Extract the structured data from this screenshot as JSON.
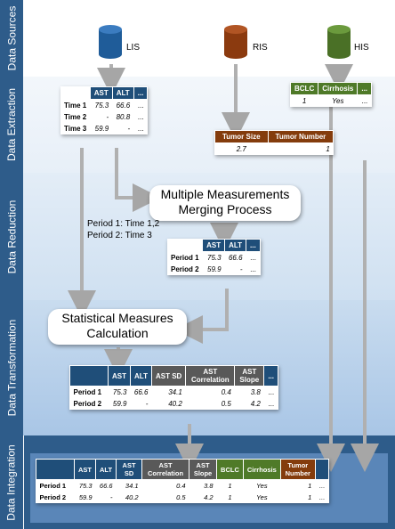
{
  "bands": [
    {
      "label": "Data Sources"
    },
    {
      "label": "Data Extraction"
    },
    {
      "label": "Data Reduction"
    },
    {
      "label": "Data Transformation"
    },
    {
      "label": "Data Integration"
    }
  ],
  "sources": {
    "lis": "LIS",
    "ris": "RIS",
    "his": "HIS"
  },
  "lis_table": {
    "headers": [
      "",
      "AST",
      "ALT",
      "..."
    ],
    "rows": [
      {
        "label": "Time 1",
        "cells": [
          "75.3",
          "66.6",
          "..."
        ]
      },
      {
        "label": "Time 2",
        "cells": [
          "-",
          "80.8",
          "..."
        ]
      },
      {
        "label": "Time 3",
        "cells": [
          "59.9",
          "-",
          "..."
        ]
      }
    ]
  },
  "his_table": {
    "headers": [
      "BCLC",
      "Cirrhosis",
      "..."
    ],
    "row": [
      "1",
      "Yes",
      "..."
    ]
  },
  "ris_table": {
    "headers": [
      "Tumor Size",
      "Tumor Number"
    ],
    "row": [
      "2.7",
      "1"
    ]
  },
  "merge_process": {
    "line1": "Multiple Measurements",
    "line2": "Merging Process"
  },
  "periods_note": {
    "line1": "Period 1: Time 1,2",
    "line2": "Period 2: Time 3"
  },
  "reduced_table": {
    "headers": [
      "",
      "AST",
      "ALT",
      "..."
    ],
    "rows": [
      {
        "label": "Period 1",
        "cells": [
          "75.3",
          "66.6",
          "..."
        ]
      },
      {
        "label": "Period 2",
        "cells": [
          "59.9",
          "-",
          "..."
        ]
      }
    ]
  },
  "stat_process": {
    "line1": "Statistical Measures",
    "line2": "Calculation"
  },
  "transform_table": {
    "headers": [
      "",
      "AST",
      "ALT",
      "AST SD",
      "AST Correlation",
      "AST Slope",
      "..."
    ],
    "rows": [
      {
        "label": "Period 1",
        "cells": [
          "75.3",
          "66.6",
          "34.1",
          "0.4",
          "3.8",
          "..."
        ]
      },
      {
        "label": "Period 2",
        "cells": [
          "59.9",
          "-",
          "40.2",
          "0.5",
          "4.2",
          "..."
        ]
      }
    ]
  },
  "integration_table": {
    "headers": [
      "",
      "AST",
      "ALT",
      "AST SD",
      "AST Correlation",
      "AST Slope",
      "BCLC",
      "Cirrhosis",
      "Tumor Number",
      ""
    ],
    "rows": [
      {
        "label": "Period 1",
        "cells": [
          "75.3",
          "66.6",
          "34.1",
          "0.4",
          "3.8",
          "1",
          "Yes",
          "1",
          "..."
        ]
      },
      {
        "label": "Period 2",
        "cells": [
          "59.9",
          "-",
          "40.2",
          "0.5",
          "4.2",
          "1",
          "Yes",
          "1",
          "..."
        ]
      }
    ]
  },
  "colors": {
    "band_label": "#2e5c8a",
    "blue_header": "#1f4e79",
    "grey_header": "#595959",
    "green_header": "#4f7a28",
    "brown_header": "#843c0c",
    "lis_cylinder": "#1f5c99",
    "ris_cylinder": "#8b3a0f",
    "his_cylinder": "#4a7026"
  }
}
